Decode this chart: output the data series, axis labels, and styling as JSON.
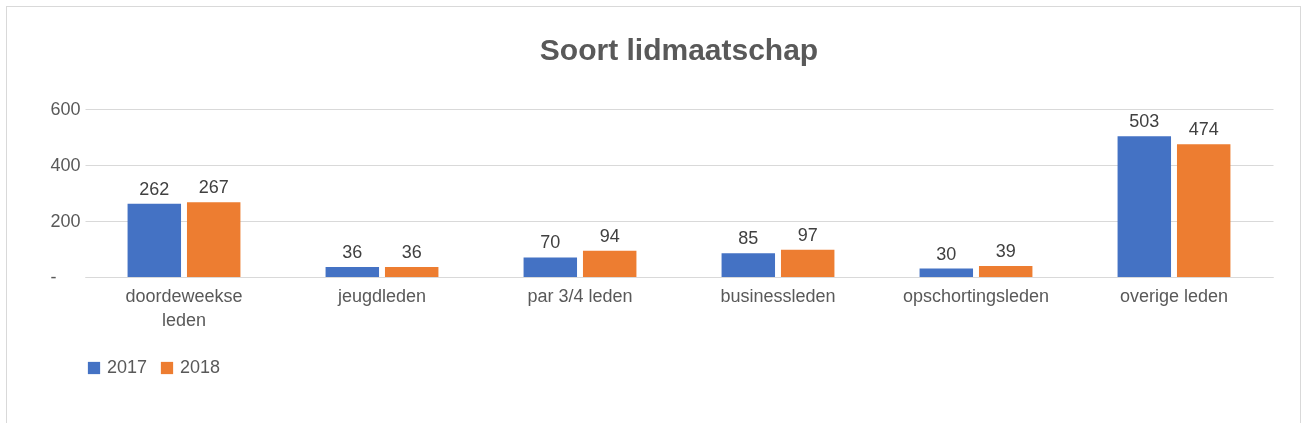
{
  "chart_data": {
    "type": "bar",
    "title": "Soort lidmaatschap",
    "categories": [
      "doordeweekse leden",
      "jeugdleden",
      "par 3/4 leden",
      "businessleden",
      "opschortingsleden",
      "overige leden"
    ],
    "series": [
      {
        "name": "2017",
        "color": "#4472c4",
        "values": [
          262,
          36,
          70,
          85,
          30,
          503
        ]
      },
      {
        "name": "2018",
        "color": "#ed7d31",
        "values": [
          267,
          36,
          94,
          97,
          39,
          474
        ]
      }
    ],
    "ylim": [
      0,
      600
    ],
    "yticks": [
      {
        "value": 0,
        "label": "-"
      },
      200,
      400,
      600
    ],
    "grid": "y",
    "legend": "bottom",
    "data_labels": true
  }
}
